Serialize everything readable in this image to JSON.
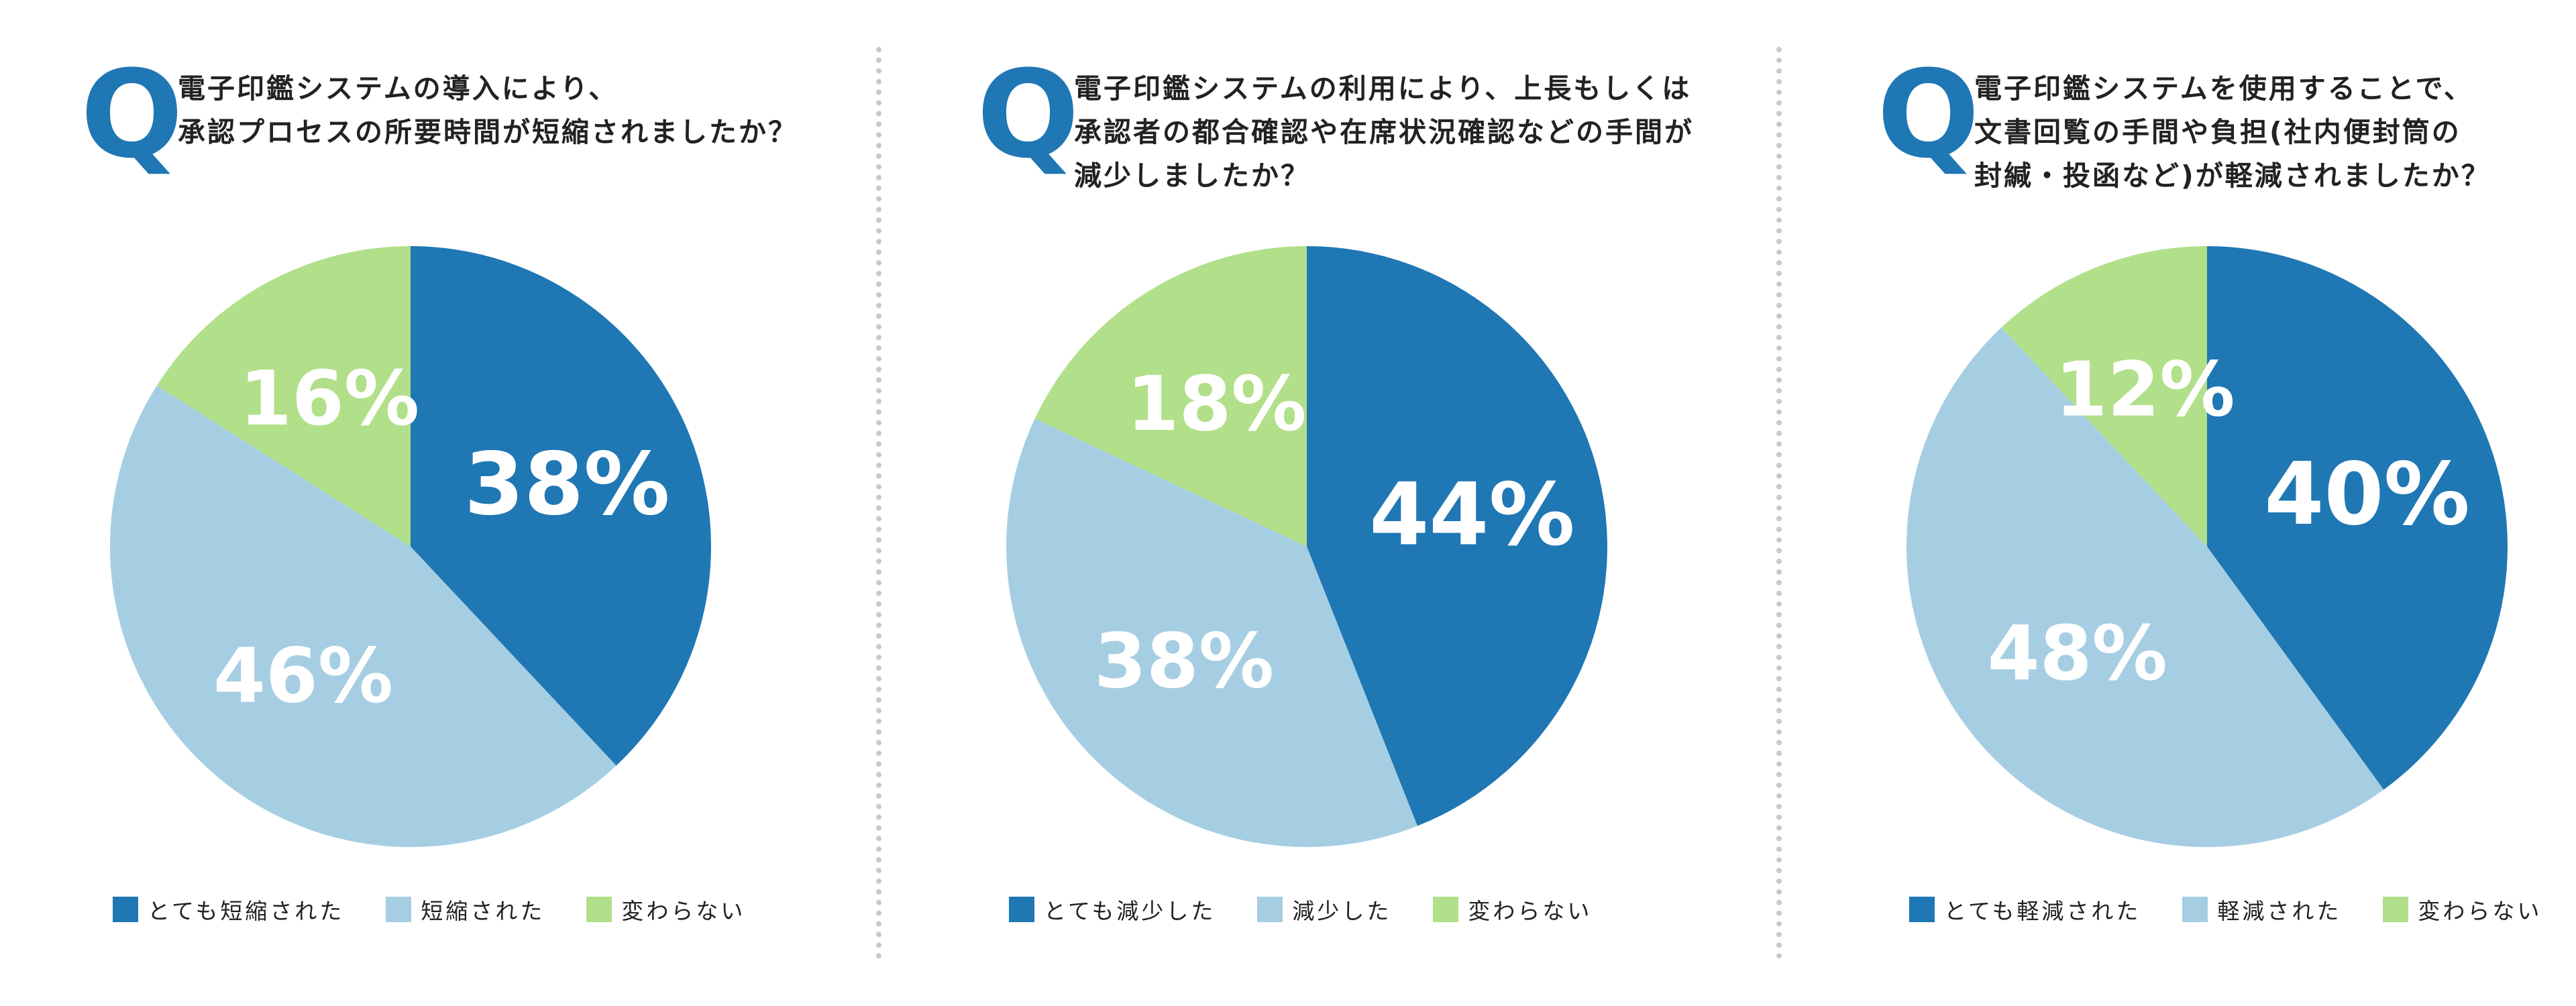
{
  "colors": {
    "dark_blue": "#1f77b4",
    "light_blue": "#a6cee3",
    "green": "#b2df8a",
    "label_white": "#ffffff",
    "divider": "#c9c9c9"
  },
  "chart_data": [
    {
      "type": "pie",
      "q_label": "Q",
      "question_lines": [
        "電子印鑑システムの導入により、",
        "承認プロセスの所要時間が短縮されましたか？"
      ],
      "slices": [
        {
          "label": "とても短縮された",
          "value": 38,
          "display": "38%",
          "color": "#1f77b4"
        },
        {
          "label": "短縮された",
          "value": 46,
          "display": "46%",
          "color": "#a6cee3"
        },
        {
          "label": "変わらない",
          "value": 16,
          "display": "16%",
          "color": "#b2df8a"
        }
      ],
      "legend_position": "bottom"
    },
    {
      "type": "pie",
      "q_label": "Q",
      "question_lines": [
        "電子印鑑システムの利用により、上長もしくは",
        "承認者の都合確認や在席状況確認などの手間が",
        "減少しましたか？"
      ],
      "slices": [
        {
          "label": "とても減少した",
          "value": 44,
          "display": "44%",
          "color": "#1f77b4"
        },
        {
          "label": "減少した",
          "value": 38,
          "display": "38%",
          "color": "#a6cee3"
        },
        {
          "label": "変わらない",
          "value": 18,
          "display": "18%",
          "color": "#b2df8a"
        }
      ],
      "legend_position": "bottom"
    },
    {
      "type": "pie",
      "q_label": "Q",
      "question_lines": [
        "電子印鑑システムを使用することで、",
        "文書回覧の手間や負担(社内便封筒の",
        "封緘・投函など)が軽減されましたか？"
      ],
      "slices": [
        {
          "label": "とても軽減された",
          "value": 40,
          "display": "40%",
          "color": "#1f77b4"
        },
        {
          "label": "軽減された",
          "value": 48,
          "display": "48%",
          "color": "#a6cee3"
        },
        {
          "label": "変わらない",
          "value": 12,
          "display": "12%",
          "color": "#b2df8a"
        }
      ],
      "legend_position": "bottom"
    }
  ]
}
